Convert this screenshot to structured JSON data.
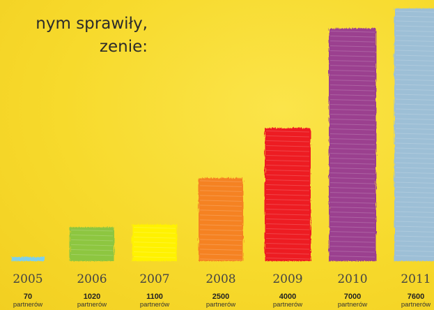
{
  "heading": {
    "line1": "nym sprawiły,",
    "line2": "zenie:"
  },
  "chart_data": {
    "type": "bar",
    "categories": [
      "2005",
      "2006",
      "2007",
      "2008",
      "2009",
      "2010",
      "2011"
    ],
    "values": [
      70,
      1020,
      1100,
      2500,
      4000,
      7000,
      7600
    ],
    "unit_label": "partnerów",
    "colors": [
      "#7fd0ea",
      "#8dc63f",
      "#fff200",
      "#f58220",
      "#ed1c24",
      "#9b3f8f",
      "#9dbfd6"
    ],
    "ylim": [
      0,
      7600
    ],
    "grid": false
  }
}
